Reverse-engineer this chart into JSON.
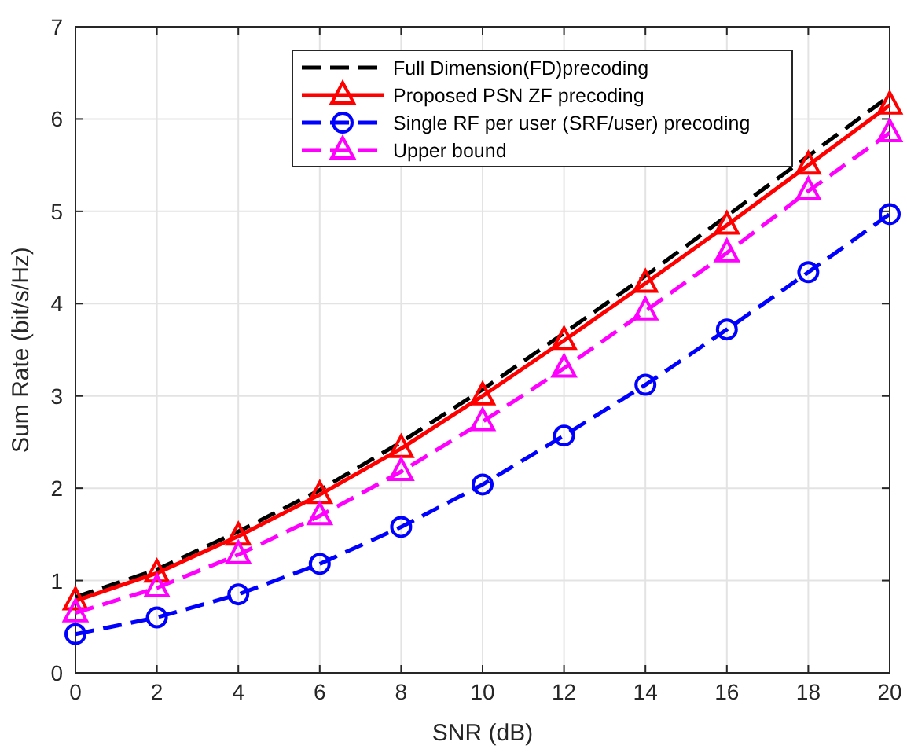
{
  "chart_data": {
    "type": "line",
    "xlabel": "SNR (dB)",
    "ylabel": "Sum Rate (bit/s/Hz)",
    "x": [
      0,
      2,
      4,
      6,
      8,
      10,
      12,
      14,
      16,
      18,
      20
    ],
    "xlim": [
      0,
      20
    ],
    "xticks": [
      0,
      2,
      4,
      6,
      8,
      10,
      12,
      14,
      16,
      18,
      20
    ],
    "ylim": [
      0,
      7
    ],
    "yticks": [
      0,
      1,
      2,
      3,
      4,
      5,
      6,
      7
    ],
    "grid": true,
    "legend": "top right",
    "series": [
      {
        "name": "Full Dimension(FD)precoding",
        "color": "#000000",
        "line_style": "dashed",
        "marker": "none",
        "values": [
          0.82,
          1.12,
          1.53,
          1.98,
          2.5,
          3.07,
          3.68,
          4.3,
          4.95,
          5.6,
          6.25
        ]
      },
      {
        "name": "Proposed PSN ZF precoding",
        "color": "#ff0000",
        "line_style": "solid",
        "marker": "triangle",
        "values": [
          0.78,
          1.08,
          1.48,
          1.93,
          2.43,
          3.0,
          3.6,
          4.22,
          4.85,
          5.5,
          6.15
        ]
      },
      {
        "name": "Single RF per user (SRF/user) precoding",
        "color": "#0000ff",
        "line_style": "dashed",
        "marker": "circle",
        "values": [
          0.42,
          0.6,
          0.85,
          1.18,
          1.58,
          2.04,
          2.57,
          3.12,
          3.72,
          4.34,
          4.97
        ]
      },
      {
        "name": "Upper bound",
        "color": "#ff00ff",
        "line_style": "dashed",
        "marker": "triangle",
        "values": [
          0.65,
          0.92,
          1.28,
          1.7,
          2.18,
          2.72,
          3.3,
          3.92,
          4.55,
          5.22,
          5.85
        ]
      }
    ]
  }
}
